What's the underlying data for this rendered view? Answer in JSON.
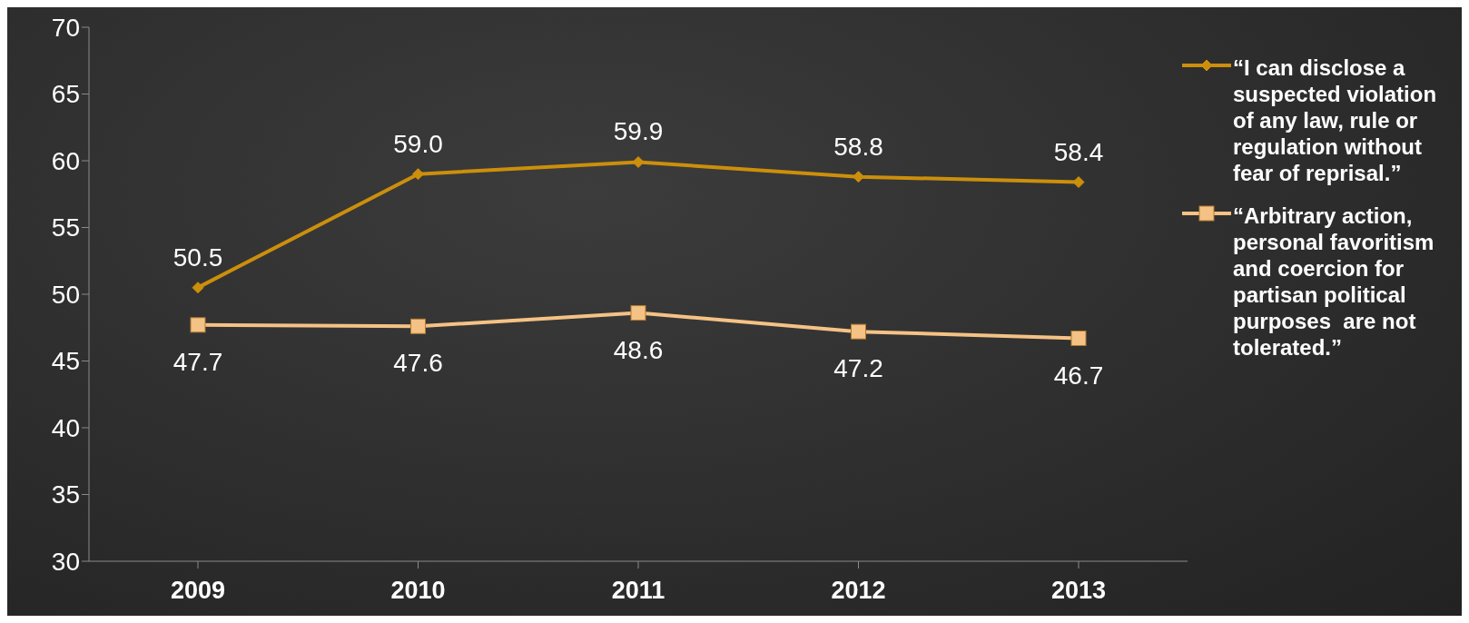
{
  "chart_data": {
    "type": "line",
    "categories": [
      "2009",
      "2010",
      "2011",
      "2012",
      "2013"
    ],
    "series": [
      {
        "name": "“I can disclose a suspected violation  of any law, rule or regulation without fear of reprisal.”",
        "color": "#cc8f0c",
        "marker": "diamond",
        "values": [
          50.5,
          59.0,
          59.9,
          58.8,
          58.4
        ],
        "value_labels": [
          "50.5",
          "59.0",
          "59.9",
          "58.8",
          "58.4"
        ]
      },
      {
        "name": "“Arbitrary action, personal favoritism and coercion for partisan political purposes  are not tolerated.”",
        "color": "#f5c285",
        "marker": "square",
        "values": [
          47.7,
          47.6,
          48.6,
          47.2,
          46.7
        ],
        "value_labels": [
          "47.7",
          "47.6",
          "48.6",
          "47.2",
          "46.7"
        ]
      }
    ],
    "ylim": [
      30,
      70
    ],
    "yticks": [
      30,
      35,
      40,
      45,
      50,
      55,
      60,
      65,
      70
    ],
    "grid": false,
    "legend": "right"
  }
}
